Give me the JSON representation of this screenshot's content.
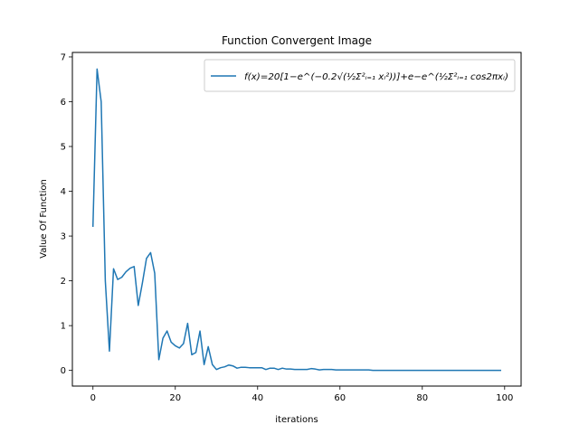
{
  "chart_data": {
    "type": "line",
    "title": "Function Convergent Image",
    "xlabel": "iterations",
    "ylabel": "Value Of Function",
    "xlim": [
      -5,
      104
    ],
    "ylim": [
      -0.35,
      7.1
    ],
    "xticks": [
      0,
      20,
      40,
      60,
      80,
      100
    ],
    "yticks": [
      0,
      1,
      2,
      3,
      4,
      5,
      6,
      7
    ],
    "grid": false,
    "legend_position": "top-right",
    "series": [
      {
        "name": "f(x)=20[1−e^(−0.2√(½Σ²ᵢ₌₁ xᵢ²))]+e−e^(½Σ²ᵢ₌₁ cos2πxᵢ)",
        "color": "#1f77b4",
        "x": [
          0,
          1,
          2,
          3,
          4,
          5,
          6,
          7,
          8,
          9,
          10,
          11,
          12,
          13,
          14,
          15,
          16,
          17,
          18,
          19,
          20,
          21,
          22,
          23,
          24,
          25,
          26,
          27,
          28,
          29,
          30,
          31,
          32,
          33,
          34,
          35,
          36,
          37,
          38,
          39,
          40,
          41,
          42,
          43,
          44,
          45,
          46,
          47,
          48,
          49,
          50,
          51,
          52,
          53,
          54,
          55,
          56,
          57,
          58,
          59,
          60,
          61,
          62,
          63,
          64,
          65,
          66,
          67,
          68,
          69,
          70,
          71,
          72,
          73,
          74,
          75,
          76,
          77,
          78,
          79,
          80,
          81,
          82,
          83,
          84,
          85,
          86,
          87,
          88,
          89,
          90,
          91,
          92,
          93,
          94,
          95,
          96,
          97,
          98,
          99
        ],
        "y": [
          3.22,
          6.73,
          6.0,
          2.0,
          0.43,
          2.27,
          2.03,
          2.08,
          2.2,
          2.28,
          2.32,
          1.45,
          1.95,
          2.5,
          2.63,
          2.17,
          0.24,
          0.72,
          0.88,
          0.63,
          0.55,
          0.5,
          0.6,
          1.05,
          0.35,
          0.4,
          0.88,
          0.13,
          0.53,
          0.13,
          0.02,
          0.06,
          0.08,
          0.12,
          0.1,
          0.05,
          0.07,
          0.07,
          0.06,
          0.06,
          0.06,
          0.06,
          0.02,
          0.05,
          0.05,
          0.02,
          0.05,
          0.03,
          0.03,
          0.02,
          0.02,
          0.02,
          0.02,
          0.04,
          0.03,
          0.01,
          0.02,
          0.02,
          0.02,
          0.01,
          0.01,
          0.01,
          0.01,
          0.01,
          0.01,
          0.01,
          0.01,
          0.01,
          0.0,
          0.0,
          0.0,
          0.0,
          0.0,
          0.0,
          0.0,
          0.0,
          0.0,
          0.0,
          0.0,
          0.0,
          0.0,
          0.0,
          0.0,
          0.0,
          0.0,
          0.0,
          0.0,
          0.0,
          0.0,
          0.0,
          0.0,
          0.0,
          0.0,
          0.0,
          0.0,
          0.0,
          0.0,
          0.0,
          0.0,
          0.0
        ]
      }
    ]
  }
}
